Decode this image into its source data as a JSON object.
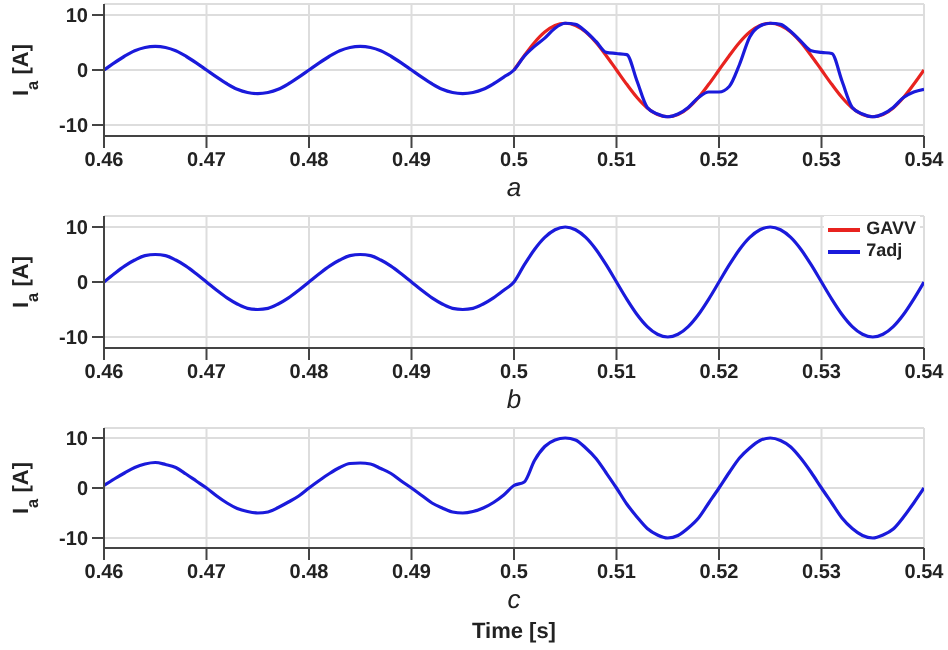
{
  "chart_data": [
    {
      "type": "line",
      "annotations": [
        "a"
      ],
      "ylabel": "I$_{a}$ [A]",
      "xlim": [
        0.46,
        0.54
      ],
      "xticks": [
        0.46,
        0.47,
        0.48,
        0.49,
        0.5,
        0.51,
        0.52,
        0.53,
        0.54
      ],
      "ylim": [
        -12,
        12
      ],
      "yticks": [
        -10,
        0,
        10
      ],
      "grid": true,
      "legend": false,
      "marker": "none",
      "line_style": "solid",
      "x": [
        0.46,
        0.461,
        0.462,
        0.463,
        0.464,
        0.465,
        0.466,
        0.467,
        0.468,
        0.469,
        0.47,
        0.471,
        0.472,
        0.473,
        0.474,
        0.475,
        0.476,
        0.477,
        0.478,
        0.479,
        0.48,
        0.481,
        0.482,
        0.483,
        0.484,
        0.485,
        0.486,
        0.487,
        0.488,
        0.489,
        0.49,
        0.491,
        0.492,
        0.493,
        0.494,
        0.495,
        0.496,
        0.497,
        0.498,
        0.499,
        0.5,
        0.501,
        0.502,
        0.503,
        0.504,
        0.505,
        0.506,
        0.507,
        0.508,
        0.509,
        0.51,
        0.511,
        0.512,
        0.513,
        0.514,
        0.515,
        0.516,
        0.517,
        0.518,
        0.519,
        0.52,
        0.521,
        0.522,
        0.523,
        0.524,
        0.525,
        0.526,
        0.527,
        0.528,
        0.529,
        0.53,
        0.531,
        0.532,
        0.533,
        0.534,
        0.535,
        0.536,
        0.537,
        0.538,
        0.539,
        0.54
      ],
      "series": [
        {
          "color": "#e8231f",
          "values": [
            null,
            null,
            null,
            null,
            null,
            null,
            null,
            null,
            null,
            null,
            null,
            null,
            null,
            null,
            null,
            null,
            null,
            null,
            null,
            null,
            null,
            null,
            null,
            null,
            null,
            null,
            null,
            null,
            null,
            null,
            null,
            null,
            null,
            null,
            null,
            null,
            null,
            null,
            null,
            null,
            0,
            2.6,
            5,
            6.9,
            8.1,
            8.5,
            8.1,
            6.9,
            5,
            2.6,
            0,
            -2.6,
            -5,
            -6.9,
            -8.1,
            -8.5,
            -8.1,
            -6.9,
            -5,
            -2.6,
            0,
            2.6,
            5,
            6.9,
            8.1,
            8.5,
            8.1,
            6.9,
            5,
            2.6,
            0,
            -2.6,
            -5,
            -6.9,
            -8.1,
            -8.5,
            -8.1,
            -6.9,
            -5,
            -2.6,
            0
          ]
        },
        {
          "color": "#1a1adb",
          "values": [
            0,
            1.3,
            2.5,
            3.5,
            4.1,
            4.3,
            4.1,
            3.5,
            2.5,
            1.3,
            0,
            -1.3,
            -2.5,
            -3.5,
            -4.1,
            -4.3,
            -4.1,
            -3.5,
            -2.5,
            -1.3,
            0,
            1.3,
            2.5,
            3.5,
            4.1,
            4.3,
            4.1,
            3.5,
            2.5,
            1.3,
            0,
            -1.3,
            -2.5,
            -3.5,
            -4.1,
            -4.3,
            -4.1,
            -3.5,
            -2.5,
            -1.3,
            0,
            2.5,
            4.3,
            5.8,
            7.6,
            8.5,
            8.3,
            7,
            5.2,
            3.2,
            3,
            2.8,
            -2,
            -6.8,
            -8,
            -8.5,
            -8,
            -6.8,
            -5,
            -4,
            -4,
            -3,
            1,
            6,
            8,
            8.5,
            8.3,
            7,
            5.2,
            3.5,
            3.2,
            3,
            -2,
            -6.8,
            -8,
            -8.5,
            -8,
            -6.8,
            -5,
            -4,
            -3.5
          ]
        }
      ]
    },
    {
      "type": "line",
      "annotations": [
        "b"
      ],
      "ylabel": "I$_{a}$ [A]",
      "xlim": [
        0.46,
        0.54
      ],
      "xticks": [
        0.46,
        0.47,
        0.48,
        0.49,
        0.5,
        0.51,
        0.52,
        0.53,
        0.54
      ],
      "ylim": [
        -12,
        12
      ],
      "yticks": [
        -10,
        0,
        10
      ],
      "grid": true,
      "legend": "top right",
      "marker": "none",
      "line_style": "solid",
      "x": [
        0.46,
        0.461,
        0.462,
        0.463,
        0.464,
        0.465,
        0.466,
        0.467,
        0.468,
        0.469,
        0.47,
        0.471,
        0.472,
        0.473,
        0.474,
        0.475,
        0.476,
        0.477,
        0.478,
        0.479,
        0.48,
        0.481,
        0.482,
        0.483,
        0.484,
        0.485,
        0.486,
        0.487,
        0.488,
        0.489,
        0.49,
        0.491,
        0.492,
        0.493,
        0.494,
        0.495,
        0.496,
        0.497,
        0.498,
        0.499,
        0.5,
        0.501,
        0.502,
        0.503,
        0.504,
        0.505,
        0.506,
        0.507,
        0.508,
        0.509,
        0.51,
        0.511,
        0.512,
        0.513,
        0.514,
        0.515,
        0.516,
        0.517,
        0.518,
        0.519,
        0.52,
        0.521,
        0.522,
        0.523,
        0.524,
        0.525,
        0.526,
        0.527,
        0.528,
        0.529,
        0.53,
        0.531,
        0.532,
        0.533,
        0.534,
        0.535,
        0.536,
        0.537,
        0.538,
        0.539,
        0.54
      ],
      "series": [
        {
          "name": "GAVV",
          "color": "#e8231f",
          "values": [
            null,
            null,
            null,
            null,
            null,
            null,
            null,
            null,
            null,
            null,
            null,
            null,
            null,
            null,
            null,
            null,
            null,
            null,
            null,
            null,
            null,
            null,
            null,
            null,
            null,
            null,
            null,
            null,
            null,
            null,
            null,
            null,
            null,
            null,
            null,
            null,
            null,
            null,
            null,
            null,
            null,
            null,
            null,
            null,
            null,
            null,
            null,
            null,
            null,
            null,
            null,
            null,
            null,
            null,
            null,
            null,
            null,
            null,
            null,
            null,
            null,
            null,
            null,
            null,
            null,
            null,
            null,
            null,
            null,
            null,
            null,
            null,
            null,
            null,
            null,
            null,
            null,
            null,
            null,
            null,
            null
          ]
        },
        {
          "name": "7adj",
          "color": "#1a1adb",
          "values": [
            0,
            1.5,
            2.9,
            4,
            4.8,
            5,
            4.8,
            4,
            2.9,
            1.5,
            0,
            -1.5,
            -2.9,
            -4,
            -4.8,
            -5,
            -4.8,
            -4,
            -2.9,
            -1.5,
            0,
            1.5,
            2.9,
            4,
            4.8,
            5,
            4.8,
            4,
            2.9,
            1.5,
            0,
            -1.5,
            -2.9,
            -4,
            -4.8,
            -5,
            -4.8,
            -4,
            -2.9,
            -1.5,
            0,
            3.1,
            5.9,
            8.1,
            9.5,
            10,
            9.5,
            8.1,
            5.9,
            3.1,
            0,
            -3.1,
            -5.9,
            -8.1,
            -9.5,
            -10,
            -9.5,
            -8.1,
            -5.9,
            -3.1,
            0,
            3.1,
            5.9,
            8.1,
            9.5,
            10,
            9.5,
            8.1,
            5.9,
            3.1,
            0,
            -3.1,
            -5.9,
            -8.1,
            -9.5,
            -10,
            -9.5,
            -8.1,
            -5.9,
            -3.1,
            0
          ]
        }
      ]
    },
    {
      "type": "line",
      "annotations": [
        "c"
      ],
      "xlabel": "Time [s]",
      "ylabel": "I$_{a}$ [A]",
      "xlim": [
        0.46,
        0.54
      ],
      "xticks": [
        0.46,
        0.47,
        0.48,
        0.49,
        0.5,
        0.51,
        0.52,
        0.53,
        0.54
      ],
      "ylim": [
        -12,
        12
      ],
      "yticks": [
        -10,
        0,
        10
      ],
      "grid": true,
      "legend": false,
      "marker": "none",
      "line_style": "solid",
      "x": [
        0.46,
        0.461,
        0.462,
        0.463,
        0.464,
        0.465,
        0.466,
        0.467,
        0.468,
        0.469,
        0.47,
        0.471,
        0.472,
        0.473,
        0.474,
        0.475,
        0.476,
        0.477,
        0.478,
        0.479,
        0.48,
        0.481,
        0.482,
        0.483,
        0.484,
        0.485,
        0.486,
        0.487,
        0.488,
        0.489,
        0.49,
        0.491,
        0.492,
        0.493,
        0.494,
        0.495,
        0.496,
        0.497,
        0.498,
        0.499,
        0.5,
        0.501,
        0.502,
        0.503,
        0.504,
        0.505,
        0.506,
        0.507,
        0.508,
        0.509,
        0.51,
        0.511,
        0.512,
        0.513,
        0.514,
        0.515,
        0.516,
        0.517,
        0.518,
        0.519,
        0.52,
        0.521,
        0.522,
        0.523,
        0.524,
        0.525,
        0.526,
        0.527,
        0.528,
        0.529,
        0.53,
        0.531,
        0.532,
        0.533,
        0.534,
        0.535,
        0.536,
        0.537,
        0.538,
        0.539,
        0.54
      ],
      "series": [
        {
          "color": "#1a1adb",
          "values": [
            0.5,
            1.8,
            3,
            4.1,
            4.8,
            5.1,
            4.7,
            4.1,
            2.8,
            1.4,
            0,
            -1.6,
            -3,
            -4.1,
            -4.7,
            -5,
            -4.8,
            -3.9,
            -2.8,
            -1.6,
            0,
            1.5,
            2.9,
            4.1,
            4.9,
            5,
            4.8,
            3.9,
            2.9,
            1.4,
            0,
            -1.5,
            -3,
            -4,
            -4.8,
            -5,
            -4.7,
            -4,
            -2.9,
            -1.4,
            0.5,
            1.2,
            5.5,
            8.3,
            9.6,
            10,
            9.6,
            8,
            5.9,
            3,
            0,
            -3.2,
            -5.8,
            -8.1,
            -9.4,
            -10,
            -9.5,
            -8,
            -6,
            -3,
            0,
            3.1,
            6,
            8,
            9.5,
            10,
            9.5,
            8.2,
            5.9,
            3.1,
            0,
            -3,
            -6,
            -8.1,
            -9.5,
            -10,
            -9.4,
            -8.2,
            -5.8,
            -3,
            0
          ]
        }
      ]
    }
  ]
}
